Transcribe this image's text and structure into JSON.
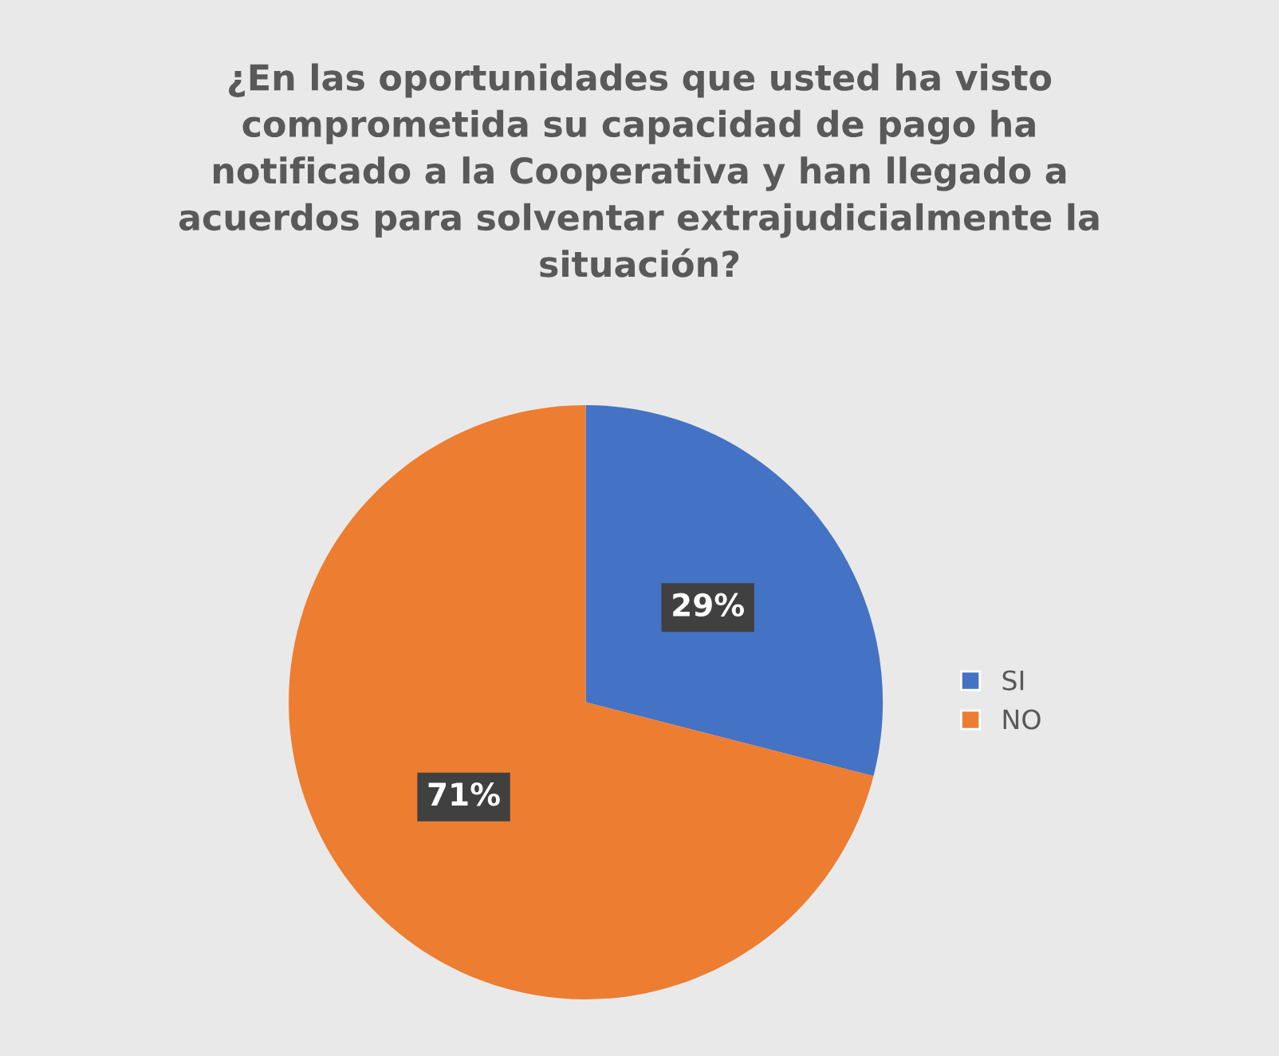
{
  "chart_data": {
    "type": "pie",
    "title": "¿En las oportunidades que usted ha visto\ncomprometida su capacidad de pago ha\nnotificado a la Cooperativa y han llegado a\nacuerdos para solventar extrajudicialmente la\nsituación?",
    "categories": [
      "SI",
      "NO"
    ],
    "values": [
      29,
      71
    ],
    "colors": [
      "#4472c4",
      "#ed7d31"
    ],
    "value_labels": [
      "29%",
      "71%"
    ],
    "legend": "right"
  }
}
